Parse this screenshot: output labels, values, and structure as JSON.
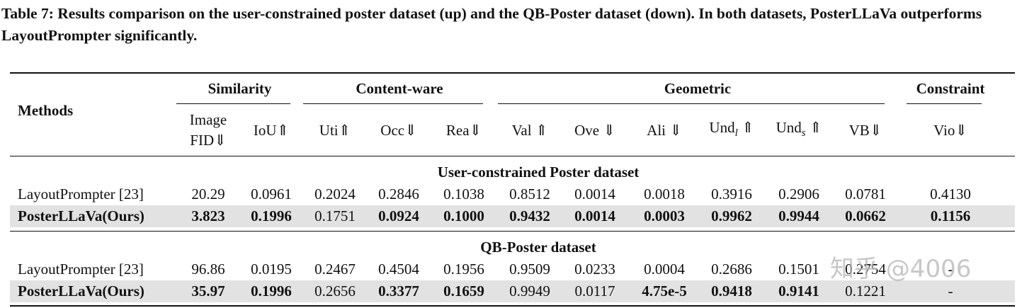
{
  "caption": "Table 7: Results comparison on the user-constrained poster dataset (up) and the QB-Poster dataset (down). In both datasets, PosterLLaVa outperforms LayoutPrompter significantly.",
  "table": {
    "methods_header": "Methods",
    "groups": [
      {
        "label": "Similarity",
        "span": 2
      },
      {
        "label": "Content-ware",
        "span": 3
      },
      {
        "label": "Geometric",
        "span": 6
      },
      {
        "label": "Constraint",
        "span": 1
      }
    ],
    "columns": [
      {
        "label": "Image FID⇓"
      },
      {
        "label": "IoU⇑"
      },
      {
        "label": "Uti⇑"
      },
      {
        "label": "Occ⇓"
      },
      {
        "label": "Rea⇓"
      },
      {
        "label": "Val ⇑"
      },
      {
        "label": "Ove ⇓"
      },
      {
        "label": "Ali ⇓"
      },
      {
        "label": "Und",
        "sub": "l",
        "suffix": " ⇑"
      },
      {
        "label": "Und",
        "sub": "s",
        "suffix": " ⇑"
      },
      {
        "label": "VB⇓"
      },
      {
        "label": "Vio⇓"
      }
    ],
    "sections": [
      {
        "title": "User-constrained Poster dataset",
        "rows": [
          {
            "cells": [
              "LayoutPrompter [23]",
              "20.29",
              "0.0961",
              "0.2024",
              "0.2846",
              "0.1038",
              "0.8512",
              "0.0014",
              "0.0018",
              "0.3916",
              "0.2906",
              "0.0781",
              "0.4130"
            ],
            "bold": [],
            "shaded": false
          },
          {
            "cells": [
              "PosterLLaVa(Ours)",
              "3.823",
              "0.1996",
              "0.1751",
              "0.0924",
              "0.1000",
              "0.9432",
              "0.0014",
              "0.0003",
              "0.9962",
              "0.9944",
              "0.0662",
              "0.1156"
            ],
            "bold": [
              0,
              1,
              2,
              4,
              5,
              6,
              7,
              8,
              9,
              10,
              11,
              12
            ],
            "shaded": true
          }
        ]
      },
      {
        "title": "QB-Poster dataset",
        "rows": [
          {
            "cells": [
              "LayoutPrompter [23]",
              "96.86",
              "0.0195",
              "0.2467",
              "0.4504",
              "0.1956",
              "0.9509",
              "0.0233",
              "0.0004",
              "0.2686",
              "0.1501",
              "0.2754",
              "-"
            ],
            "bold": [],
            "shaded": false
          },
          {
            "cells": [
              "PosterLLaVa(Ours)",
              "35.97",
              "0.1996",
              "0.2656",
              "0.3377",
              "0.1659",
              "0.9949",
              "0.0117",
              "4.75e-5",
              "0.9418",
              "0.9141",
              "0.1221",
              "-"
            ],
            "bold": [
              0,
              1,
              2,
              4,
              5,
              8,
              9,
              10
            ],
            "shaded": true
          }
        ]
      }
    ]
  },
  "watermark": "知乎 @4006"
}
